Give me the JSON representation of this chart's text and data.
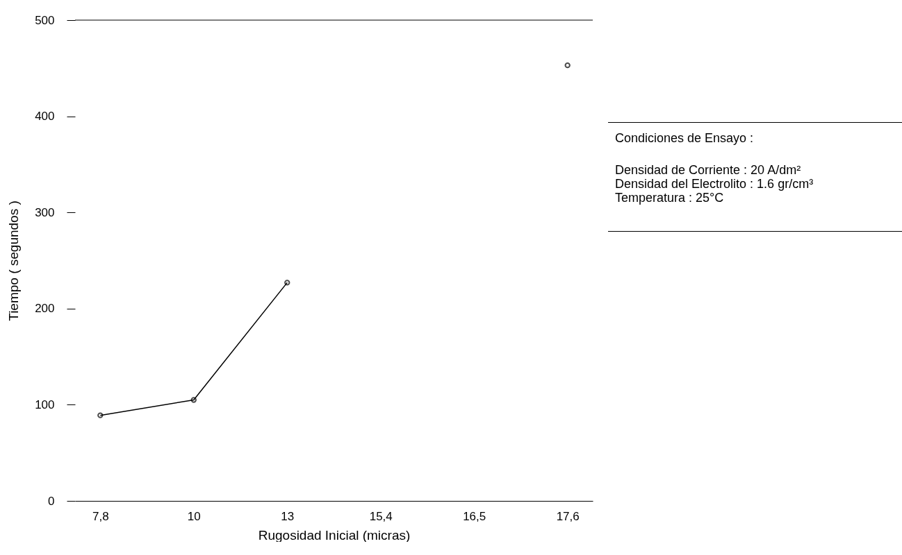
{
  "chart_data": {
    "type": "line",
    "xlabel": "Rugosidad Inicial (micras)",
    "ylabel": "Tiempo ( segundos )",
    "categories": [
      "7,8",
      "10",
      "13",
      "15,4",
      "16,5",
      "17,6"
    ],
    "series": [
      {
        "color": "#000000",
        "values": [
          89,
          105,
          227,
          null,
          null,
          453
        ]
      }
    ],
    "ylim": [
      0,
      500
    ],
    "yticks": [
      0,
      100,
      200,
      300,
      400,
      500
    ],
    "grid": false,
    "marker": "circle",
    "line_style": "solid",
    "ref_lines": [
      {
        "axis": "y",
        "value": 500
      }
    ],
    "annotations": [
      "Condiciones de Ensayo :",
      "Densidad de Corriente : 20 A/dm²",
      "Densidad del Electrolito : 1.6 gr/cm³",
      "Temperatura : 25°C"
    ]
  }
}
